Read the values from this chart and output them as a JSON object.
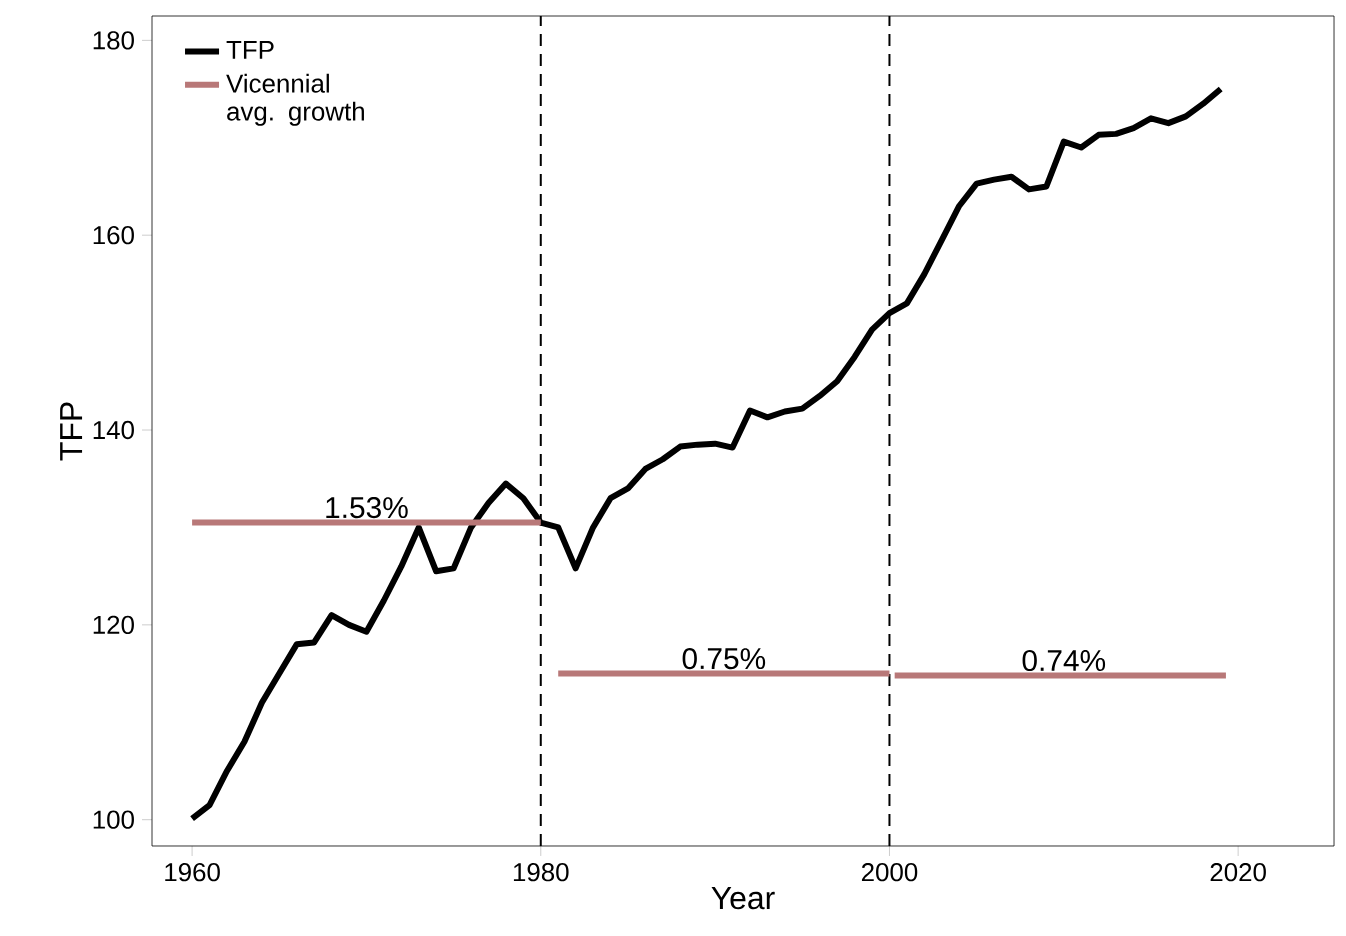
{
  "chart_data": {
    "type": "line",
    "xlabel": "Year",
    "ylabel": "TFP",
    "xlim": [
      1957.7,
      2025.5
    ],
    "ylim": [
      97.3,
      182.5
    ],
    "xticks": [
      1960,
      1980,
      2000,
      2020
    ],
    "yticks": [
      100,
      120,
      140,
      160,
      180
    ],
    "grid": false,
    "legend": "top left",
    "marker": "none",
    "series": [
      {
        "name": "TFP",
        "color": "#000000",
        "x": [
          1960,
          1961,
          1962,
          1963,
          1964,
          1965,
          1966,
          1967,
          1968,
          1969,
          1970,
          1971,
          1972,
          1973,
          1974,
          1975,
          1976,
          1977,
          1978,
          1979,
          1980,
          1981,
          1982,
          1983,
          1984,
          1985,
          1986,
          1987,
          1988,
          1989,
          1990,
          1991,
          1992,
          1993,
          1994,
          1995,
          1996,
          1997,
          1998,
          1999,
          2000,
          2001,
          2002,
          2003,
          2004,
          2005,
          2006,
          2007,
          2008,
          2009,
          2010,
          2011,
          2012,
          2013,
          2014,
          2015,
          2016,
          2017,
          2018,
          2019
        ],
        "values": [
          100.1,
          101.5,
          105,
          108,
          112,
          115,
          118,
          118.2,
          121,
          120,
          119.3,
          122.5,
          126,
          130,
          125.5,
          125.8,
          130,
          132.5,
          134.5,
          133,
          130.5,
          130,
          125.8,
          130,
          133,
          134,
          136,
          137,
          138.3,
          138.5,
          138.6,
          138.2,
          142,
          141.3,
          141.9,
          142.2,
          143.5,
          145,
          147.5,
          150.3,
          152,
          153,
          156,
          159.5,
          163,
          165.3,
          165.7,
          166,
          164.7,
          165,
          169.6,
          169,
          170.3,
          170.4,
          171,
          172,
          171.5,
          172.2,
          173.5,
          175
        ]
      },
      {
        "name": "Vicennial avg. growth",
        "color": "#b87878",
        "x": [
          1960,
          1980
        ],
        "values": [
          130.5,
          130.5
        ]
      },
      {
        "color": "#b87878",
        "x": [
          1981,
          2000
        ],
        "values": [
          115,
          115
        ]
      },
      {
        "color": "#b87878",
        "x": [
          2000.3,
          2019.3
        ],
        "values": [
          114.8,
          114.8
        ]
      }
    ],
    "ref_lines": [
      {
        "axis": "x",
        "value": 1980,
        "color": "#000000",
        "line_style": "dashed"
      },
      {
        "axis": "x",
        "value": 2000,
        "color": "#000000",
        "line_style": "dashed"
      }
    ],
    "annotations": [
      {
        "text": "1.53%",
        "x": 1970,
        "y": 130.5
      },
      {
        "text": "0.75%",
        "x": 1990.5,
        "y": 115
      },
      {
        "text": "0.74%",
        "x": 2010,
        "y": 114.8
      }
    ]
  }
}
